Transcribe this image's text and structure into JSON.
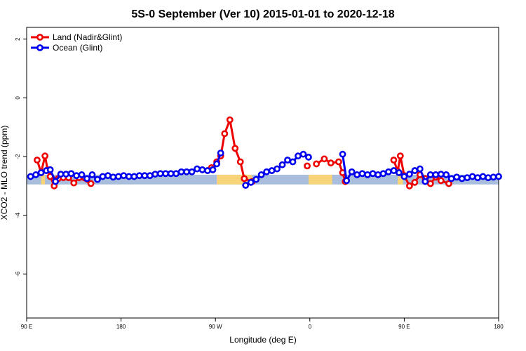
{
  "chart_data": {
    "type": "line",
    "title": "5S-0 September (Ver 10)   2015-01-01 to 2020-12-18",
    "xlabel": "Longitude (deg E)",
    "ylabel": "XCO2 - MLO trend (ppm)",
    "xlim": [
      90,
      450
    ],
    "ylim": [
      -7.5,
      2.4
    ],
    "x_ticks": [
      {
        "value": 90,
        "label": "90 E"
      },
      {
        "value": 162,
        "label": "180"
      },
      {
        "value": 234,
        "label": "90 W"
      },
      {
        "value": 306,
        "label": "0"
      },
      {
        "value": 378,
        "label": "90 E"
      },
      {
        "value": 450,
        "label": "180"
      }
    ],
    "y_ticks": [
      {
        "value": 2,
        "label": "2"
      },
      {
        "value": 0,
        "label": "0"
      },
      {
        "value": -2,
        "label": "-2"
      },
      {
        "value": -4,
        "label": "-4"
      },
      {
        "value": -6,
        "label": "-6"
      }
    ],
    "legend_position": "top-left",
    "series": [
      {
        "name": "Land (Nadir&Glint)",
        "color": "#ee0000",
        "segments": [
          [
            [
              98,
              -2.12
            ],
            [
              101,
              -2.55
            ],
            [
              104,
              -1.98
            ],
            [
              106,
              -2.45
            ],
            [
              108,
              -2.68
            ],
            [
              111,
              -3.0
            ],
            [
              114,
              -2.75
            ],
            [
              118,
              -2.72
            ],
            [
              122,
              -2.72
            ],
            [
              126,
              -2.9
            ],
            [
              130,
              -2.72
            ],
            [
              139,
              -2.92
            ]
          ],
          [
            [
              231,
              -2.38
            ],
            [
              235,
              -2.18
            ],
            [
              238,
              -1.98
            ],
            [
              241,
              -1.22
            ],
            [
              245,
              -0.75
            ],
            [
              249,
              -1.72
            ],
            [
              253,
              -2.18
            ],
            [
              256,
              -2.75
            ],
            [
              262,
              -2.85
            ]
          ],
          [
            [
              304,
              -2.32
            ]
          ],
          [
            [
              311,
              -2.25
            ],
            [
              317,
              -2.08
            ],
            [
              322,
              -2.22
            ],
            [
              328,
              -2.18
            ],
            [
              331,
              -2.55
            ],
            [
              333,
              -2.85
            ]
          ],
          [
            [
              370,
              -2.12
            ],
            [
              373,
              -2.5
            ],
            [
              375,
              -1.98
            ],
            [
              378,
              -2.65
            ],
            [
              382,
              -3.0
            ],
            [
              386,
              -2.88
            ],
            [
              390,
              -2.62
            ],
            [
              394,
              -2.75
            ],
            [
              398,
              -2.92
            ],
            [
              402,
              -2.7
            ],
            [
              406,
              -2.82
            ],
            [
              412,
              -2.92
            ]
          ]
        ]
      },
      {
        "name": "Ocean (Glint)",
        "color": "#0000ee",
        "segments": [
          [
            [
              93,
              -2.68
            ],
            [
              97,
              -2.62
            ],
            [
              101,
              -2.55
            ],
            [
              105,
              -2.48
            ],
            [
              108,
              -2.45
            ],
            [
              112,
              -2.85
            ],
            [
              116,
              -2.6
            ],
            [
              120,
              -2.6
            ],
            [
              124,
              -2.58
            ],
            [
              128,
              -2.65
            ],
            [
              132,
              -2.62
            ],
            [
              136,
              -2.75
            ],
            [
              140,
              -2.62
            ],
            [
              144,
              -2.78
            ],
            [
              148,
              -2.68
            ],
            [
              152,
              -2.65
            ],
            [
              156,
              -2.7
            ],
            [
              160,
              -2.68
            ],
            [
              164,
              -2.65
            ],
            [
              168,
              -2.68
            ],
            [
              172,
              -2.68
            ],
            [
              176,
              -2.65
            ],
            [
              180,
              -2.65
            ],
            [
              184,
              -2.65
            ],
            [
              188,
              -2.6
            ],
            [
              192,
              -2.58
            ],
            [
              196,
              -2.58
            ],
            [
              200,
              -2.58
            ],
            [
              204,
              -2.58
            ],
            [
              208,
              -2.52
            ],
            [
              212,
              -2.52
            ],
            [
              216,
              -2.52
            ],
            [
              220,
              -2.42
            ],
            [
              224,
              -2.45
            ],
            [
              228,
              -2.48
            ],
            [
              232,
              -2.45
            ],
            [
              235,
              -2.25
            ],
            [
              238,
              -1.88
            ]
          ],
          [
            [
              257,
              -2.98
            ],
            [
              261,
              -2.88
            ],
            [
              265,
              -2.78
            ],
            [
              269,
              -2.62
            ],
            [
              273,
              -2.52
            ],
            [
              277,
              -2.48
            ],
            [
              281,
              -2.42
            ],
            [
              285,
              -2.28
            ],
            [
              289,
              -2.12
            ],
            [
              293,
              -2.18
            ],
            [
              297,
              -1.98
            ],
            [
              301,
              -1.92
            ],
            [
              305,
              -2.02
            ]
          ],
          [
            [
              331,
              -1.92
            ],
            [
              334,
              -2.82
            ],
            [
              338,
              -2.52
            ],
            [
              342,
              -2.62
            ],
            [
              346,
              -2.58
            ],
            [
              350,
              -2.62
            ],
            [
              354,
              -2.58
            ],
            [
              358,
              -2.62
            ],
            [
              362,
              -2.58
            ],
            [
              366,
              -2.52
            ],
            [
              370,
              -2.48
            ],
            [
              374,
              -2.55
            ],
            [
              378,
              -2.68
            ],
            [
              382,
              -2.6
            ],
            [
              386,
              -2.48
            ],
            [
              390,
              -2.42
            ],
            [
              394,
              -2.85
            ],
            [
              398,
              -2.62
            ],
            [
              402,
              -2.62
            ],
            [
              406,
              -2.6
            ],
            [
              410,
              -2.62
            ],
            [
              414,
              -2.75
            ],
            [
              418,
              -2.7
            ],
            [
              422,
              -2.75
            ],
            [
              426,
              -2.72
            ],
            [
              430,
              -2.68
            ],
            [
              434,
              -2.72
            ],
            [
              438,
              -2.68
            ],
            [
              442,
              -2.72
            ],
            [
              446,
              -2.7
            ],
            [
              450,
              -2.68
            ]
          ]
        ]
      }
    ],
    "surface_band": {
      "y_range": [
        -2.95,
        -2.62
      ],
      "ocean_color": "#a8bedc",
      "land_color": "#f7d47a",
      "land_ranges": [
        [
          101,
          104
        ],
        [
          235,
          262
        ],
        [
          305,
          323
        ],
        [
          373,
          377
        ]
      ]
    }
  }
}
